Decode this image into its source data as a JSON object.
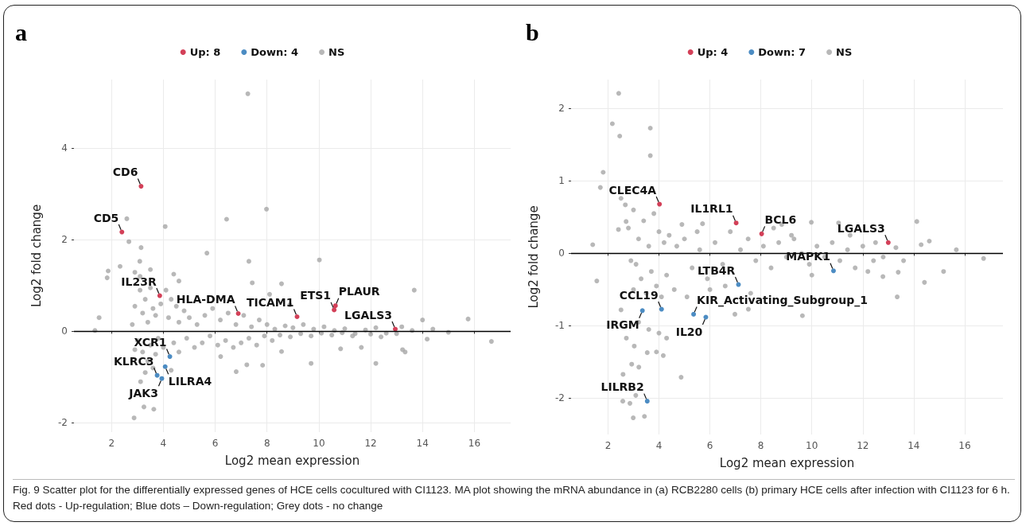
{
  "chart_data": [
    {
      "type": "scatter",
      "title": "a",
      "xlabel": "Log2 mean expression",
      "ylabel": "Log2 fold change",
      "xlim": [
        0.55,
        17.4
      ],
      "xticks": [
        2,
        4,
        6,
        8,
        10,
        12,
        14,
        16
      ],
      "ylim": [
        -2.2,
        5.5
      ],
      "yticks": [
        -2,
        0,
        2,
        4
      ],
      "grid": true,
      "legend": "top",
      "marker": "circle",
      "ref_lines": [
        {
          "axis": "y",
          "value": 0,
          "color": "#000000"
        }
      ],
      "series": [
        {
          "name": "Up: 8",
          "color": "#c8102e",
          "x": [
            3.14,
            2.4,
            3.86,
            6.89,
            9.16,
            10.64,
            10.59,
            12.95
          ],
          "values": [
            3.17,
            2.17,
            0.78,
            0.39,
            0.32,
            0.56,
            0.47,
            0.05
          ]
        },
        {
          "name": "Down: 4",
          "color": "#1f6fb4",
          "x": [
            4.25,
            4.07,
            3.76,
            3.94
          ],
          "values": [
            -0.55,
            -0.77,
            -0.96,
            -1.03
          ]
        },
        {
          "name": "NS",
          "color": "#a6a6a6",
          "x": [
            7.26,
            7.98,
            6.44,
            2.59,
            4.07,
            2.67,
            3.14,
            1.87,
            1.83,
            2.33,
            3.09,
            2.9,
            5.68,
            7.3,
            10.02,
            7.43,
            8.56,
            8.1,
            8.88,
            13.68,
            14.0,
            14.18,
            16.66,
            15.76,
            13.33,
            13.23,
            12.2,
            11.64,
            10.84,
            9.7,
            8.56,
            7.83,
            7.22,
            6.81,
            6.21,
            3.12,
            3.25,
            3.63,
            2.87,
            1.52,
            1.36,
            3.1,
            3.3,
            3.5,
            3.6,
            3.2,
            3.4,
            3.7,
            3.9,
            4.1,
            4.3,
            4.5,
            4.2,
            4.6,
            4.8,
            5.0,
            5.3,
            5.6,
            5.9,
            6.2,
            6.5,
            6.8,
            7.1,
            7.4,
            7.7,
            8.0,
            8.3,
            8.7,
            9.0,
            9.4,
            9.8,
            10.2,
            10.6,
            11.0,
            11.4,
            11.8,
            12.2,
            12.6,
            13.2,
            13.6,
            14.4,
            15.0,
            3.0,
            3.2,
            3.4,
            3.5,
            3.7,
            3.8,
            4.0,
            4.4,
            4.6,
            4.9,
            5.2,
            5.5,
            5.8,
            6.1,
            6.4,
            6.7,
            7.0,
            7.3,
            7.6,
            7.9,
            8.2,
            8.5,
            8.9,
            9.3,
            9.7,
            10.1,
            10.5,
            10.9,
            11.3,
            12.0,
            12.4,
            13.0,
            3.3,
            3.6,
            4.3,
            3.1,
            3.5,
            4.4,
            4.6,
            2.9,
            2.8,
            2.9
          ],
          "values": [
            5.19,
            2.67,
            2.45,
            2.46,
            2.29,
            1.96,
            1.83,
            1.32,
            1.17,
            1.42,
            1.53,
            1.29,
            1.71,
            1.53,
            1.56,
            1.06,
            1.04,
            0.81,
            0.58,
            0.9,
            0.25,
            -0.17,
            -0.22,
            0.27,
            -0.45,
            -0.4,
            -0.7,
            -0.35,
            -0.38,
            -0.7,
            -0.44,
            -0.74,
            -0.73,
            -0.88,
            -0.55,
            -1.1,
            -1.65,
            -1.7,
            -1.89,
            0.3,
            0.02,
            0.9,
            0.7,
            0.95,
            0.5,
            0.4,
            0.2,
            0.35,
            0.6,
            0.9,
            0.7,
            0.55,
            0.3,
            0.2,
            0.45,
            0.3,
            0.15,
            0.35,
            0.5,
            0.25,
            0.4,
            0.15,
            0.35,
            0.1,
            0.25,
            0.15,
            0.05,
            0.12,
            0.08,
            0.15,
            0.05,
            0.1,
            0.02,
            0.06,
            -0.05,
            0.03,
            0.08,
            -0.04,
            0.1,
            0.02,
            0.05,
            -0.02,
            -0.2,
            -0.45,
            -0.65,
            -0.3,
            -0.5,
            -0.15,
            -0.35,
            -0.25,
            -0.45,
            -0.15,
            -0.35,
            -0.25,
            -0.1,
            -0.3,
            -0.2,
            -0.35,
            -0.25,
            -0.15,
            -0.3,
            -0.1,
            -0.2,
            -0.08,
            -0.12,
            -0.05,
            -0.1,
            -0.04,
            -0.08,
            -0.03,
            -0.1,
            -0.06,
            -0.12,
            -0.05,
            -0.9,
            -0.8,
            -0.85,
            1.2,
            1.35,
            1.25,
            1.1,
            0.55,
            0.15,
            -0.4
          ]
        }
      ],
      "annotations": [
        {
          "text": "CD6",
          "x": 3.14,
          "y": 3.17
        },
        {
          "text": "CD5",
          "x": 2.4,
          "y": 2.17
        },
        {
          "text": "IL23R",
          "x": 3.86,
          "y": 0.78
        },
        {
          "text": "HLA-DMA",
          "x": 6.89,
          "y": 0.39
        },
        {
          "text": "TICAM1",
          "x": 9.16,
          "y": 0.32
        },
        {
          "text": "PLAUR",
          "x": 10.64,
          "y": 0.56
        },
        {
          "text": "ETS1",
          "x": 10.59,
          "y": 0.47
        },
        {
          "text": "LGALS3",
          "x": 12.95,
          "y": 0.05
        },
        {
          "text": "XCR1",
          "x": 4.25,
          "y": -0.55
        },
        {
          "text": "LILRA4",
          "x": 4.07,
          "y": -0.77
        },
        {
          "text": "KLRC3",
          "x": 3.76,
          "y": -0.96
        },
        {
          "text": "JAK3",
          "x": 3.94,
          "y": -1.03
        }
      ]
    },
    {
      "type": "scatter",
      "title": "b",
      "xlabel": "Log2 mean expression",
      "ylabel": "Log2 fold change",
      "xlim": [
        0.55,
        17.5
      ],
      "xticks": [
        2,
        4,
        6,
        8,
        10,
        12,
        14,
        16
      ],
      "ylim": [
        -2.5,
        2.4
      ],
      "yticks": [
        -2,
        -1,
        0,
        1,
        2
      ],
      "grid": true,
      "legend": "top",
      "marker": "circle",
      "ref_lines": [
        {
          "axis": "y",
          "value": 0,
          "color": "#000000"
        }
      ],
      "series": [
        {
          "name": "Up: 4",
          "color": "#c8102e",
          "x": [
            4.02,
            7.03,
            8.03,
            13.0
          ],
          "values": [
            0.68,
            0.42,
            0.27,
            0.15
          ]
        },
        {
          "name": "Down: 7",
          "color": "#1f6fb4",
          "x": [
            7.12,
            10.85,
            4.1,
            5.36,
            3.35,
            5.84,
            3.54
          ],
          "values": [
            -0.43,
            -0.24,
            -0.77,
            -0.84,
            -0.79,
            -0.88,
            -2.04
          ]
        },
        {
          "name": "NS",
          "color": "#a6a6a6",
          "x": [
            2.42,
            2.17,
            2.46,
            3.66,
            3.66,
            1.81,
            1.7,
            2.51,
            2.68,
            1.4,
            2.41,
            2.71,
            5.71,
            8.82,
            9.98,
            11.05,
            14.12,
            14.61,
            14.29,
            15.67,
            16.74,
            15.17,
            14.42,
            13.35,
            13.39,
            12.79,
            12.42,
            9.63,
            6.98,
            7.51,
            2.58,
            2.86,
            2.99,
            3.43,
            3.09,
            2.59,
            2.93,
            3.21,
            3.9,
            4.17,
            3.54,
            4.87,
            3.03,
            2.72,
            1.56,
            2.51,
            4.3,
            2.8,
            3.0,
            3.2,
            3.4,
            3.6,
            3.8,
            4.0,
            4.2,
            4.4,
            4.7,
            3.1,
            3.3,
            3.5,
            3.7,
            3.9,
            4.1,
            4.3,
            4.6,
            2.9,
            3.0,
            3.2,
            3.6,
            4.0,
            5.0,
            5.3,
            5.6,
            5.9,
            6.2,
            6.5,
            6.8,
            7.2,
            7.5,
            7.8,
            8.1,
            8.4,
            8.7,
            9.0,
            9.3,
            9.6,
            9.9,
            10.2,
            10.5,
            10.8,
            11.1,
            11.4,
            11.7,
            12.0,
            12.5,
            12.8,
            13.3,
            13.6,
            5.1,
            6.0,
            6.6,
            7.6,
            8.5,
            9.2,
            10.0,
            11.5,
            12.2,
            4.9,
            5.5
          ],
          "values": [
            2.21,
            1.79,
            1.62,
            1.73,
            1.35,
            1.12,
            0.91,
            0.76,
            0.67,
            0.12,
            0.33,
            0.44,
            0.41,
            0.4,
            0.43,
            0.42,
            0.44,
            0.17,
            0.12,
            0.05,
            -0.07,
            -0.25,
            -0.4,
            -0.6,
            -0.26,
            -0.32,
            -0.1,
            -0.86,
            -0.84,
            -0.77,
            -2.04,
            -2.07,
            -2.27,
            -2.25,
            -1.96,
            -1.67,
            -1.53,
            -1.57,
            -1.36,
            -1.41,
            -1.37,
            -1.71,
            -1.28,
            -1.17,
            -0.38,
            -0.78,
            -1.17,
            0.35,
            0.6,
            0.2,
            0.45,
            0.1,
            0.55,
            0.3,
            0.15,
            0.25,
            0.1,
            -0.15,
            -0.35,
            -0.55,
            -0.25,
            -0.45,
            -0.6,
            -0.3,
            -0.5,
            -0.1,
            -0.5,
            -0.95,
            -1.05,
            -1.1,
            0.2,
            -0.2,
            0.05,
            -0.35,
            0.15,
            -0.15,
            0.3,
            0.05,
            0.2,
            -0.1,
            0.1,
            -0.2,
            0.15,
            -0.05,
            0.2,
            0.0,
            -0.15,
            0.1,
            -0.05,
            0.15,
            -0.1,
            0.05,
            -0.2,
            0.1,
            0.15,
            -0.05,
            0.08,
            -0.1,
            -0.6,
            -0.5,
            -0.45,
            -0.55,
            0.35,
            0.25,
            -0.3,
            0.25,
            -0.25,
            0.4,
            0.3
          ]
        }
      ],
      "annotations": [
        {
          "text": "CLEC4A",
          "x": 4.02,
          "y": 0.68
        },
        {
          "text": "IL1RL1",
          "x": 7.03,
          "y": 0.42
        },
        {
          "text": "BCL6",
          "x": 8.03,
          "y": 0.27
        },
        {
          "text": "LGALS3",
          "x": 13.0,
          "y": 0.15
        },
        {
          "text": "LTB4R",
          "x": 7.12,
          "y": -0.43
        },
        {
          "text": "MAPK1",
          "x": 10.85,
          "y": -0.24
        },
        {
          "text": "CCL19",
          "x": 4.1,
          "y": -0.77
        },
        {
          "text": "KIR_Activating_Subgroup_1",
          "x": 5.36,
          "y": -0.84
        },
        {
          "text": "IRGM",
          "x": 3.35,
          "y": -0.79
        },
        {
          "text": "IL20",
          "x": 5.84,
          "y": -0.88
        },
        {
          "text": "LILRB2",
          "x": 3.54,
          "y": -2.04
        }
      ]
    },
    {
      "type": "other",
      "title": "Fig. 9 Scatter plot for the differentially expressed genes of HCE cells cocultured with CI1123. MA plot showing the mRNA abundance in (a) RCB2280 cells (b) primary HCE cells after infection with CI1123 for 6 h. Red dots - Up-regulation; Blue dots – Down-regulation; Grey dots - no change"
    }
  ]
}
